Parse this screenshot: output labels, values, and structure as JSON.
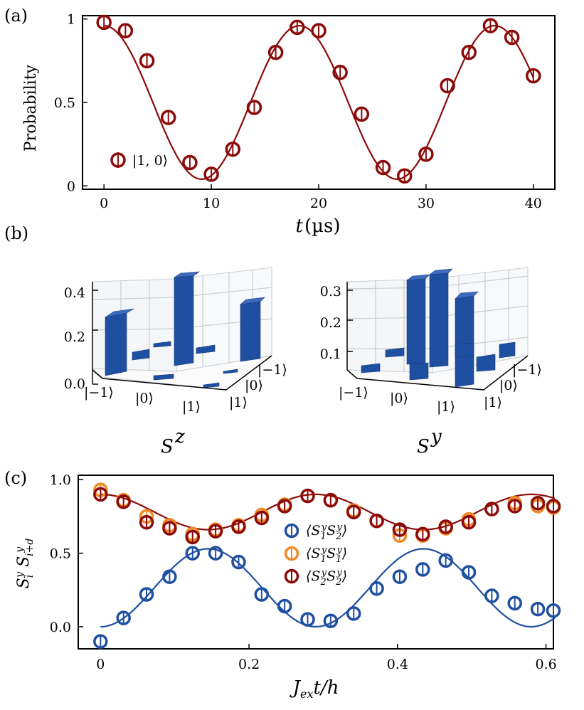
{
  "chart_data": [
    {
      "panel": "(a)",
      "type": "scatter",
      "xlabel_pre": "t",
      "xlabel_unit": "(µs)",
      "ylabel": "Probability",
      "xlim": [
        -2,
        42
      ],
      "ylim": [
        -0.02,
        1.02
      ],
      "xticks": [
        "0",
        "10",
        "20",
        "30",
        "40"
      ],
      "yticks": [
        "0",
        "0.5",
        "1"
      ],
      "series": [
        {
          "name": "|1, 0⟩",
          "color": "#8b0a0a",
          "x": [
            0,
            2,
            4,
            6,
            8,
            10,
            12,
            14,
            16,
            18,
            20,
            22,
            24,
            26,
            28,
            30,
            32,
            34,
            36,
            38,
            40
          ],
          "values": [
            0.98,
            0.93,
            0.75,
            0.41,
            0.14,
            0.07,
            0.22,
            0.47,
            0.8,
            0.95,
            0.93,
            0.68,
            0.43,
            0.11,
            0.06,
            0.19,
            0.6,
            0.8,
            0.96,
            0.89,
            0.66
          ]
        }
      ],
      "fit": {
        "model": "0.5 + 0.46*cos(2*pi*t/18.2)",
        "color": "#8b0a0a"
      }
    },
    {
      "panel": "(b)",
      "type": "bar3d",
      "subplots": [
        {
          "title_base": "S",
          "title_sup": "z",
          "zticks": [
            "0.0",
            "0.2",
            "0.4"
          ],
          "row_labels": [
            "|−1⟩",
            "|0⟩",
            "|1⟩"
          ],
          "col_labels": [
            "|1⟩",
            "|0⟩",
            "|−1⟩"
          ],
          "color": "#1f4fa0"
        },
        {
          "title_base": "S",
          "title_sup": "y",
          "zticks": [
            "0.1",
            "0.2",
            "0.3"
          ],
          "row_labels": [
            "|−1⟩",
            "|0⟩",
            "|1⟩"
          ],
          "col_labels": [
            "|1⟩",
            "|0⟩",
            "|−1⟩"
          ],
          "color": "#1f4fa0"
        }
      ]
    },
    {
      "panel": "(c)",
      "type": "scatter",
      "xlabel": "J_ex t/h",
      "ylabel": "S_i^y S_{i+d}^y",
      "xlim": [
        -0.03,
        0.61
      ],
      "ylim": [
        -0.15,
        1.03
      ],
      "xticks": [
        "0",
        "0.2",
        "0.4",
        "0.6"
      ],
      "yticks": [
        "0.0",
        "0.5",
        "1.0"
      ],
      "x": [
        0,
        0.031,
        0.062,
        0.093,
        0.124,
        0.155,
        0.186,
        0.217,
        0.248,
        0.279,
        0.31,
        0.341,
        0.372,
        0.403,
        0.434,
        0.465,
        0.496,
        0.527,
        0.558,
        0.589,
        0.61
      ],
      "series": [
        {
          "name": "⟨S1y S2y⟩",
          "color": "#1f4fa0",
          "values": [
            -0.1,
            0.06,
            0.22,
            0.34,
            0.5,
            0.5,
            0.44,
            0.22,
            0.14,
            0.05,
            0.04,
            0.09,
            0.26,
            0.34,
            0.39,
            0.45,
            0.37,
            0.21,
            0.16,
            0.12,
            0.11
          ]
        },
        {
          "name": "⟨S1y S1y⟩",
          "color": "#f08a24",
          "values": [
            0.93,
            0.86,
            0.75,
            0.69,
            0.63,
            0.66,
            0.69,
            0.76,
            0.83,
            0.89,
            0.86,
            0.79,
            0.72,
            0.62,
            0.62,
            0.67,
            0.73,
            0.8,
            0.84,
            0.82,
            0.81
          ]
        },
        {
          "name": "⟨S2y S2y⟩",
          "color": "#8b0a0a",
          "values": [
            0.9,
            0.85,
            0.71,
            0.67,
            0.61,
            0.65,
            0.68,
            0.74,
            0.82,
            0.89,
            0.86,
            0.78,
            0.72,
            0.66,
            0.63,
            0.68,
            0.71,
            0.8,
            0.82,
            0.84,
            0.82
          ]
        }
      ],
      "fits": [
        {
          "color": "#1f4fa0",
          "model": "blue cosine fit"
        },
        {
          "color": "#8b0a0a",
          "model": "red cosine fit"
        }
      ]
    }
  ],
  "labels": {
    "panel_a": "(a)",
    "panel_b": "(b)",
    "panel_c": "(c)"
  }
}
